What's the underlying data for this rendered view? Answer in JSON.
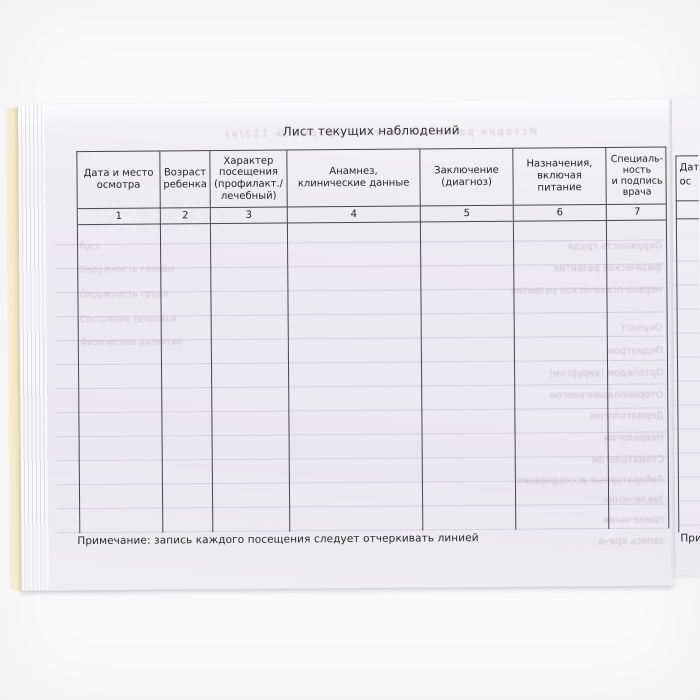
{
  "photo": {
    "background_color": "#f9f9fa",
    "paper_color": "#ebeaef",
    "page_edge_color": "#f3e8c8",
    "table_line_color": "#47474d",
    "text_color": "#26262a",
    "ghost_showthrough_color": "#b699a8"
  },
  "sheet": {
    "title": "Лист текущих наблюдений",
    "footnote": "Примечание: запись каждого посещения следует отчеркивать линией",
    "table": {
      "columns": [
        {
          "header": "Дата и место\nосмотра",
          "number": "1"
        },
        {
          "header": "Возраст\nребенка",
          "number": "2"
        },
        {
          "header": "Характер\nпосещения\n(профилакт./\nлечебный)",
          "number": "3"
        },
        {
          "header": "Анамнез,\nклинические данные",
          "number": "4"
        },
        {
          "header": "Заключение\n(диагноз)",
          "number": "5"
        },
        {
          "header": "Назначения,\nвключая\nпитание",
          "number": "6"
        },
        {
          "header": "Специаль-\nность\nи подпись\nврача",
          "number": "7"
        }
      ]
    },
    "ghost_showthrough": {
      "header_line": "История развития ребенка (форма № 112/у)",
      "left_lines": [
        "Рост",
        "Окружность головы",
        "Окружность груди",
        "Состояние здоровья",
        "Физическое развитие"
      ],
      "right_lines": [
        "Окружность груди",
        "физическое развитие",
        "нервно-психическое развитие",
        "Окулист",
        "Педиатром",
        "Ортопедом (хирургом)",
        "Оториноларингологом",
        "Дерматологом",
        "Неврологом",
        "Стоматологом",
        "Лабораторные исследования",
        "Заключение",
        "примечания",
        "запись врача"
      ]
    }
  },
  "next_page": {
    "header_fragment": "Дата\nос",
    "footnote_fragment": "Прим"
  }
}
